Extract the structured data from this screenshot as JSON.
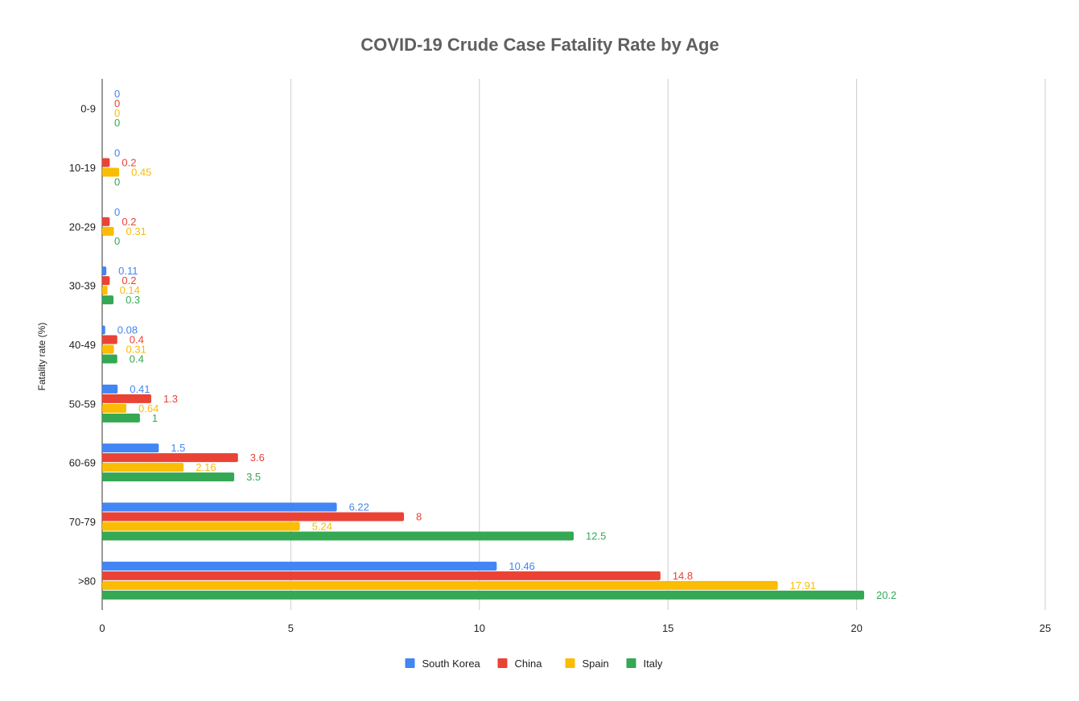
{
  "chart_data": {
    "type": "bar",
    "orientation": "horizontal",
    "title": "COVID-19 Crude Case Fatality Rate by Age",
    "xlabel": "",
    "ylabel": "Fatality rate (%)",
    "xlim": [
      0,
      25
    ],
    "x_ticks": [
      "0",
      "5",
      "10",
      "15",
      "20",
      "25"
    ],
    "grid": true,
    "legend_position": "bottom",
    "categories": [
      "0-9",
      "10-19",
      "20-29",
      "30-39",
      "40-49",
      "50-59",
      "60-69",
      "70-79",
      ">80"
    ],
    "series": [
      {
        "name": "South Korea",
        "color": "#4285f4",
        "values": [
          0,
          0,
          0,
          0.11,
          0.08,
          0.41,
          1.5,
          6.22,
          10.46
        ]
      },
      {
        "name": "China",
        "color": "#ea4335",
        "values": [
          0,
          0.2,
          0.2,
          0.2,
          0.4,
          1.3,
          3.6,
          8,
          14.8
        ]
      },
      {
        "name": "Spain",
        "color": "#fbbc04",
        "values": [
          0,
          0.45,
          0.31,
          0.14,
          0.31,
          0.64,
          2.16,
          5.24,
          17.91
        ]
      },
      {
        "name": "Italy",
        "color": "#34a853",
        "values": [
          0,
          0,
          0,
          0.3,
          0.4,
          1,
          3.5,
          12.5,
          20.2
        ]
      }
    ]
  }
}
